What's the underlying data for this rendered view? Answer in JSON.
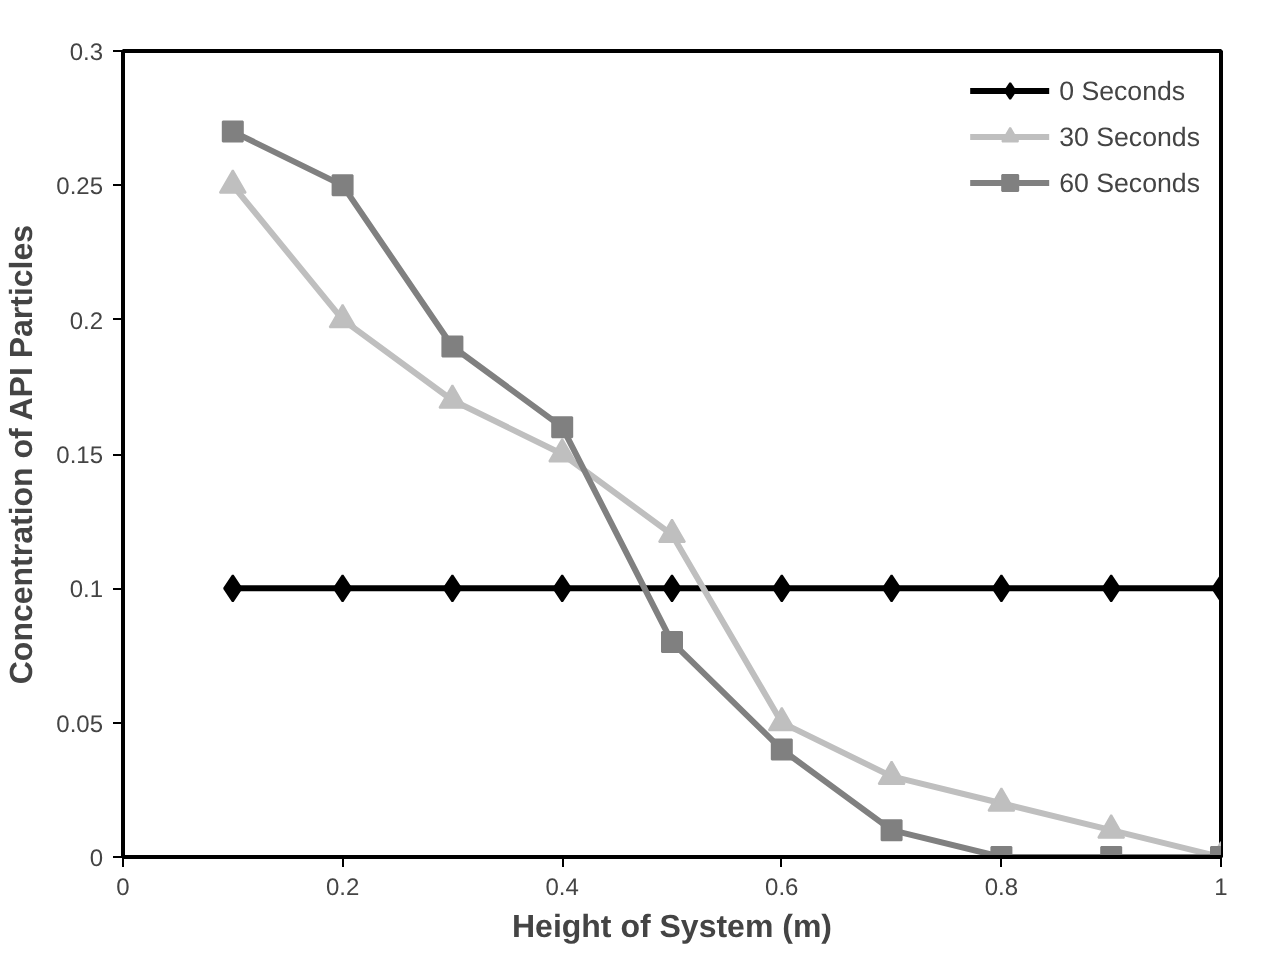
{
  "chart_data": {
    "type": "line",
    "xlabel": "Height of System (m)",
    "ylabel": "Concentration of API Particles",
    "x": [
      0.1,
      0.2,
      0.3,
      0.4,
      0.5,
      0.6,
      0.7,
      0.8,
      0.9,
      1.0
    ],
    "series": [
      {
        "name": "0 Seconds",
        "color": "#000000",
        "marker": "diamond",
        "values": [
          0.1,
          0.1,
          0.1,
          0.1,
          0.1,
          0.1,
          0.1,
          0.1,
          0.1,
          0.1
        ]
      },
      {
        "name": "30 Seconds",
        "color": "#bfbfbf",
        "marker": "triangle",
        "values": [
          0.25,
          0.2,
          0.17,
          0.15,
          0.12,
          0.05,
          0.03,
          0.02,
          0.01,
          0
        ]
      },
      {
        "name": "60 Seconds",
        "color": "#808080",
        "marker": "square",
        "values": [
          0.27,
          0.25,
          0.19,
          0.16,
          0.08,
          0.04,
          0.01,
          0,
          0,
          0
        ]
      }
    ],
    "xlim": [
      0,
      1
    ],
    "ylim": [
      0,
      0.3
    ],
    "xticks": [
      0,
      {
        "value": 0.2,
        "label": "0.2"
      },
      {
        "value": 0.4,
        "label": "0.4"
      },
      {
        "value": 0.6,
        "label": "0.6"
      },
      {
        "value": 0.8,
        "label": "0.8"
      },
      1
    ],
    "yticks": [
      0,
      {
        "value": 0.05,
        "label": "0.05"
      },
      {
        "value": 0.1,
        "label": "0.1"
      },
      {
        "value": 0.15,
        "label": "0.15"
      },
      {
        "value": 0.2,
        "label": "0.2"
      },
      {
        "value": 0.25,
        "label": "0.25"
      },
      {
        "value": 0.3,
        "label": "0.3"
      }
    ],
    "grid": false,
    "legend": "top right",
    "line_style": "solid"
  }
}
